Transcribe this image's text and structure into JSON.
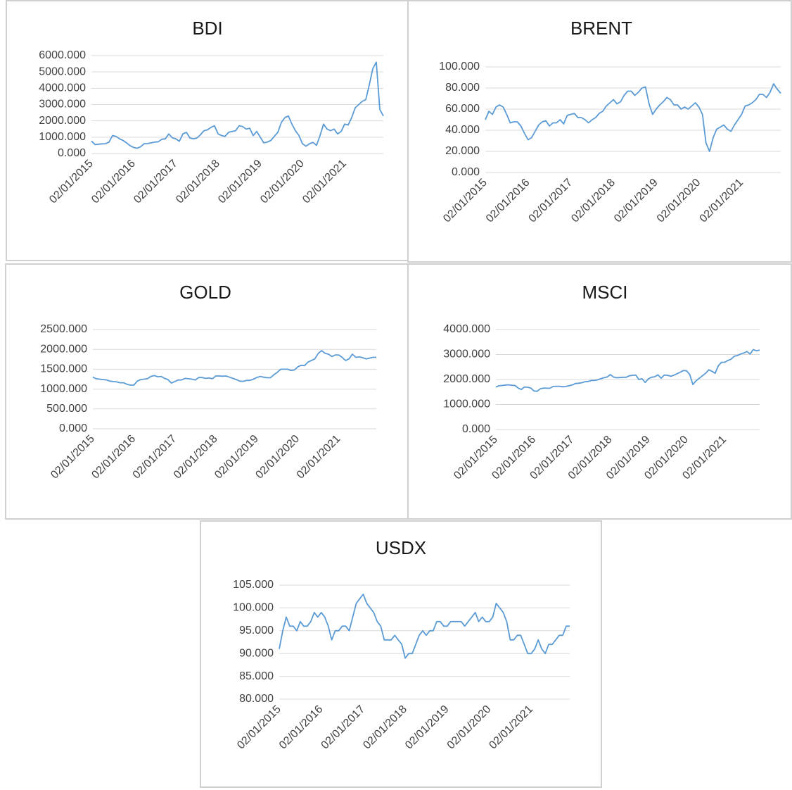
{
  "chart_data": [
    {
      "type": "line",
      "title": "BDI",
      "color": "#5b9bd5",
      "grid": true,
      "categories": [
        "02/01/2015",
        null,
        null,
        null,
        null,
        null,
        null,
        null,
        null,
        null,
        null,
        null,
        "02/01/2016",
        null,
        null,
        null,
        null,
        null,
        null,
        null,
        null,
        null,
        null,
        null,
        "02/01/2017",
        null,
        null,
        null,
        null,
        null,
        null,
        null,
        null,
        null,
        null,
        null,
        "02/01/2018",
        null,
        null,
        null,
        null,
        null,
        null,
        null,
        null,
        null,
        null,
        null,
        "02/01/2019",
        null,
        null,
        null,
        null,
        null,
        null,
        null,
        null,
        null,
        null,
        null,
        "02/01/2020",
        null,
        null,
        null,
        null,
        null,
        null,
        null,
        null,
        null,
        null,
        null,
        "02/01/2021",
        null,
        null,
        null,
        null,
        null,
        null,
        null,
        null,
        null,
        null,
        null
      ],
      "values": [
        770,
        550,
        570,
        590,
        600,
        700,
        1100,
        1050,
        900,
        800,
        650,
        480,
        370,
        320,
        420,
        600,
        610,
        650,
        700,
        720,
        870,
        900,
        1200,
        960,
        900,
        750,
        1200,
        1300,
        950,
        900,
        950,
        1150,
        1400,
        1450,
        1600,
        1700,
        1200,
        1100,
        1050,
        1300,
        1350,
        1400,
        1700,
        1650,
        1500,
        1550,
        1100,
        1350,
        1000,
        650,
        700,
        800,
        1050,
        1300,
        1900,
        2200,
        2300,
        1800,
        1400,
        1100,
        600,
        450,
        600,
        680,
        500,
        1100,
        1800,
        1500,
        1400,
        1500,
        1200,
        1350,
        1800,
        1750,
        2200,
        2800,
        3000,
        3200,
        3300,
        4200,
        5200,
        5600,
        2700,
        2300
      ],
      "ylim": [
        0,
        6000
      ],
      "yticks": [
        {
          "value": 0,
          "label": "0.000"
        },
        {
          "value": 1000,
          "label": "1000.000"
        },
        {
          "value": 2000,
          "label": "2000.000"
        },
        {
          "value": 3000,
          "label": "3000.000"
        },
        {
          "value": 4000,
          "label": "4000.000"
        },
        {
          "value": 5000,
          "label": "5000.000"
        },
        {
          "value": 6000,
          "label": "6000.000"
        }
      ]
    },
    {
      "type": "line",
      "title": "BRENT",
      "color": "#5b9bd5",
      "grid": true,
      "categories": [
        "02/01/2015",
        null,
        null,
        null,
        null,
        null,
        null,
        null,
        null,
        null,
        null,
        null,
        "02/01/2016",
        null,
        null,
        null,
        null,
        null,
        null,
        null,
        null,
        null,
        null,
        null,
        "02/01/2017",
        null,
        null,
        null,
        null,
        null,
        null,
        null,
        null,
        null,
        null,
        null,
        "02/01/2018",
        null,
        null,
        null,
        null,
        null,
        null,
        null,
        null,
        null,
        null,
        null,
        "02/01/2019",
        null,
        null,
        null,
        null,
        null,
        null,
        null,
        null,
        null,
        null,
        null,
        "02/01/2020",
        null,
        null,
        null,
        null,
        null,
        null,
        null,
        null,
        null,
        null,
        null,
        "02/01/2021",
        null,
        null,
        null,
        null,
        null,
        null,
        null,
        null,
        null,
        null,
        null
      ],
      "values": [
        50,
        58,
        55,
        62,
        64,
        62,
        55,
        47,
        48,
        48,
        44,
        37,
        31,
        33,
        39,
        45,
        48,
        49,
        44,
        47,
        47,
        50,
        46,
        54,
        55,
        56,
        52,
        52,
        50,
        47,
        50,
        52,
        56,
        58,
        63,
        66,
        69,
        65,
        67,
        73,
        77,
        77,
        73,
        76,
        80,
        81,
        65,
        55,
        60,
        64,
        67,
        71,
        69,
        64,
        64,
        60,
        62,
        60,
        63,
        66,
        62,
        55,
        28,
        20,
        33,
        41,
        43,
        45,
        41,
        39,
        45,
        50,
        55,
        63,
        64,
        66,
        69,
        74,
        74,
        71,
        76,
        84,
        79,
        75
      ],
      "ylim": [
        0,
        100
      ],
      "yticks": [
        {
          "value": 0,
          "label": "0.000"
        },
        {
          "value": 20,
          "label": "20.000"
        },
        {
          "value": 40,
          "label": "40.000"
        },
        {
          "value": 60,
          "label": "60.000"
        },
        {
          "value": 80,
          "label": "80.000"
        },
        {
          "value": 100,
          "label": "100.000"
        }
      ]
    },
    {
      "type": "line",
      "title": "GOLD",
      "color": "#5b9bd5",
      "grid": true,
      "categories": [
        "02/01/2015",
        null,
        null,
        null,
        null,
        null,
        null,
        null,
        null,
        null,
        null,
        null,
        "02/01/2016",
        null,
        null,
        null,
        null,
        null,
        null,
        null,
        null,
        null,
        null,
        null,
        "02/01/2017",
        null,
        null,
        null,
        null,
        null,
        null,
        null,
        null,
        null,
        null,
        null,
        "02/01/2018",
        null,
        null,
        null,
        null,
        null,
        null,
        null,
        null,
        null,
        null,
        null,
        "02/01/2019",
        null,
        null,
        null,
        null,
        null,
        null,
        null,
        null,
        null,
        null,
        null,
        "02/01/2020",
        null,
        null,
        null,
        null,
        null,
        null,
        null,
        null,
        null,
        null,
        null,
        "02/01/2021",
        null,
        null,
        null,
        null,
        null,
        null,
        null,
        null,
        null,
        null,
        null
      ],
      "values": [
        1300,
        1260,
        1250,
        1240,
        1230,
        1200,
        1190,
        1180,
        1160,
        1160,
        1120,
        1100,
        1100,
        1200,
        1240,
        1250,
        1260,
        1320,
        1340,
        1310,
        1320,
        1270,
        1240,
        1150,
        1190,
        1230,
        1230,
        1270,
        1260,
        1250,
        1230,
        1290,
        1290,
        1270,
        1280,
        1260,
        1330,
        1330,
        1325,
        1330,
        1300,
        1270,
        1240,
        1200,
        1195,
        1220,
        1220,
        1250,
        1290,
        1320,
        1300,
        1285,
        1285,
        1360,
        1420,
        1500,
        1500,
        1500,
        1470,
        1480,
        1560,
        1600,
        1590,
        1680,
        1720,
        1760,
        1900,
        1970,
        1900,
        1880,
        1820,
        1860,
        1860,
        1800,
        1720,
        1760,
        1880,
        1800,
        1810,
        1790,
        1760,
        1780,
        1800,
        1800
      ],
      "ylim": [
        0,
        2500
      ],
      "yticks": [
        {
          "value": 0,
          "label": "0.000"
        },
        {
          "value": 500,
          "label": "500.000"
        },
        {
          "value": 1000,
          "label": "1000.000"
        },
        {
          "value": 1500,
          "label": "1500.000"
        },
        {
          "value": 2000,
          "label": "2000.000"
        },
        {
          "value": 2500,
          "label": "2500.000"
        }
      ]
    },
    {
      "type": "line",
      "title": "MSCI",
      "color": "#5b9bd5",
      "grid": true,
      "categories": [
        "02/01/2015",
        null,
        null,
        null,
        null,
        null,
        null,
        null,
        null,
        null,
        null,
        null,
        "02/01/2016",
        null,
        null,
        null,
        null,
        null,
        null,
        null,
        null,
        null,
        null,
        null,
        "02/01/2017",
        null,
        null,
        null,
        null,
        null,
        null,
        null,
        null,
        null,
        null,
        null,
        "02/01/2018",
        null,
        null,
        null,
        null,
        null,
        null,
        null,
        null,
        null,
        null,
        null,
        "02/01/2019",
        null,
        null,
        null,
        null,
        null,
        null,
        null,
        null,
        null,
        null,
        null,
        "02/01/2020",
        null,
        null,
        null,
        null,
        null,
        null,
        null,
        null,
        null,
        null,
        null,
        "02/01/2021",
        null,
        null,
        null,
        null,
        null,
        null,
        null,
        null,
        null,
        null,
        null
      ],
      "values": [
        1700,
        1750,
        1760,
        1780,
        1790,
        1770,
        1760,
        1660,
        1600,
        1700,
        1690,
        1660,
        1540,
        1530,
        1630,
        1660,
        1650,
        1650,
        1720,
        1730,
        1730,
        1710,
        1720,
        1750,
        1780,
        1840,
        1850,
        1870,
        1910,
        1920,
        1960,
        1960,
        1990,
        2030,
        2070,
        2100,
        2200,
        2100,
        2070,
        2080,
        2090,
        2090,
        2150,
        2170,
        2180,
        2000,
        2030,
        1880,
        2030,
        2090,
        2110,
        2190,
        2050,
        2180,
        2170,
        2130,
        2170,
        2230,
        2290,
        2360,
        2350,
        2200,
        1800,
        1950,
        2050,
        2150,
        2250,
        2390,
        2330,
        2250,
        2550,
        2690,
        2690,
        2760,
        2810,
        2930,
        2960,
        3020,
        3060,
        3120,
        3020,
        3200,
        3150,
        3180
      ],
      "ylim": [
        0,
        4000
      ],
      "yticks": [
        {
          "value": 0,
          "label": "0.000"
        },
        {
          "value": 1000,
          "label": "1000.000"
        },
        {
          "value": 2000,
          "label": "2000.000"
        },
        {
          "value": 3000,
          "label": "3000.000"
        },
        {
          "value": 4000,
          "label": "4000.000"
        }
      ]
    },
    {
      "type": "line",
      "title": "USDX",
      "color": "#5b9bd5",
      "grid": true,
      "categories": [
        "02/01/2015",
        null,
        null,
        null,
        null,
        null,
        null,
        null,
        null,
        null,
        null,
        null,
        "02/01/2016",
        null,
        null,
        null,
        null,
        null,
        null,
        null,
        null,
        null,
        null,
        null,
        "02/01/2017",
        null,
        null,
        null,
        null,
        null,
        null,
        null,
        null,
        null,
        null,
        null,
        "02/01/2018",
        null,
        null,
        null,
        null,
        null,
        null,
        null,
        null,
        null,
        null,
        null,
        "02/01/2019",
        null,
        null,
        null,
        null,
        null,
        null,
        null,
        null,
        null,
        null,
        null,
        "02/01/2020",
        null,
        null,
        null,
        null,
        null,
        null,
        null,
        null,
        null,
        null,
        null,
        "02/01/2021",
        null,
        null,
        null,
        null,
        null,
        null,
        null,
        null,
        null,
        null,
        null
      ],
      "values": [
        91,
        95,
        98,
        96,
        96,
        95,
        97,
        96,
        96,
        97,
        99,
        98,
        99,
        98,
        96,
        93,
        95,
        95,
        96,
        96,
        95,
        98,
        101,
        102,
        103,
        101,
        100,
        99,
        97,
        96,
        93,
        93,
        93,
        94,
        93,
        92,
        89,
        90,
        90,
        92,
        94,
        95,
        94,
        95,
        95,
        97,
        97,
        96,
        96,
        97,
        97,
        97,
        97,
        96,
        97,
        98,
        99,
        97,
        98,
        97,
        97,
        98,
        101,
        100,
        99,
        97,
        93,
        93,
        94,
        94,
        92,
        90,
        90,
        91,
        93,
        91,
        90,
        92,
        92,
        93,
        94,
        94,
        96,
        96
      ],
      "ylim": [
        80,
        105
      ],
      "yticks": [
        {
          "value": 80,
          "label": "80.000"
        },
        {
          "value": 85,
          "label": "85.000"
        },
        {
          "value": 90,
          "label": "90.000"
        },
        {
          "value": 95,
          "label": "95.000"
        },
        {
          "value": 100,
          "label": "100.000"
        },
        {
          "value": 105,
          "label": "105.000"
        }
      ]
    }
  ]
}
